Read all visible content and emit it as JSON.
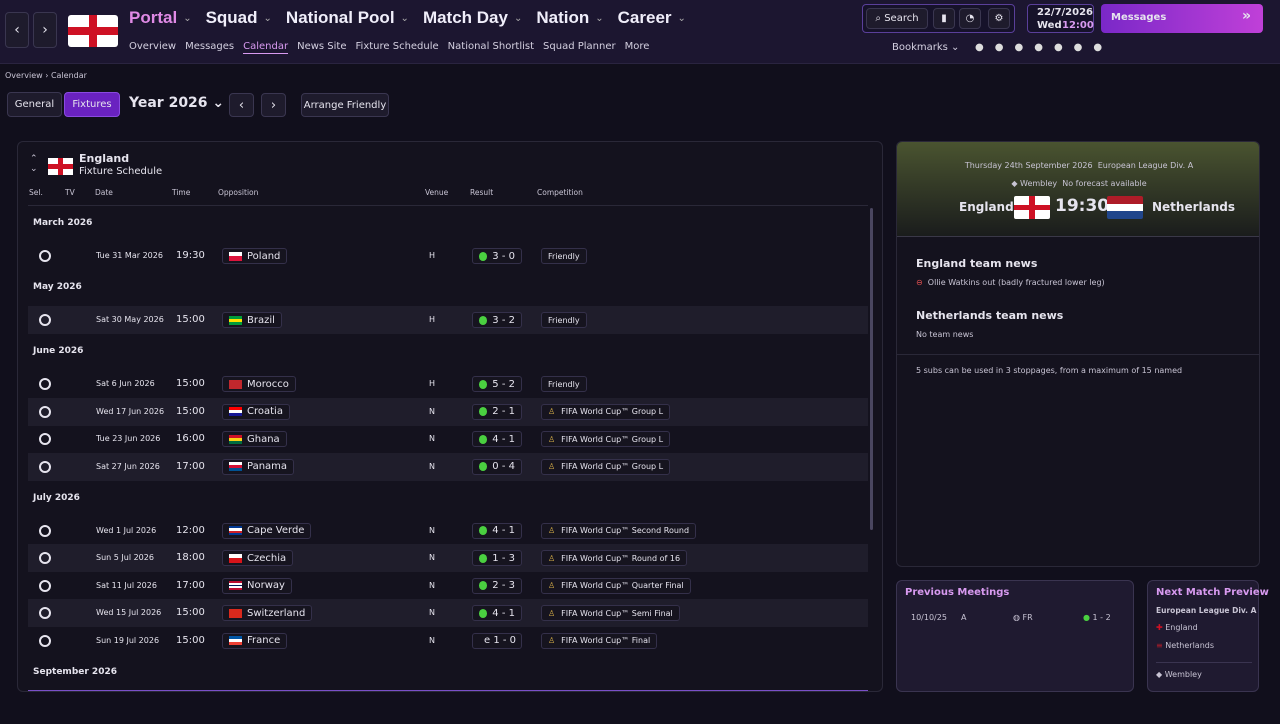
{
  "nav": {
    "main": [
      "Portal",
      "Squad",
      "National Pool",
      "Match Day",
      "Nation",
      "Career"
    ],
    "sub": [
      "Overview",
      "Messages",
      "Calendar",
      "News Site",
      "Fixture Schedule",
      "National Shortlist",
      "Squad Planner",
      "More"
    ],
    "search": "Search",
    "date": "22/7/2026",
    "weekday": "Wed",
    "time": "12:00",
    "messages": "Messages",
    "bookmarks": "Bookmarks"
  },
  "breadcrumb": [
    "Overview",
    "Calendar"
  ],
  "toolbar": {
    "tabs": [
      "General",
      "Fixtures"
    ],
    "year": "Year 2026",
    "arrange": "Arrange Friendly"
  },
  "schedule": {
    "team": "England",
    "subtitle": "Fixture Schedule",
    "columns": [
      "Sel.",
      "TV",
      "Date",
      "Time",
      "Opposition",
      "Venue",
      "Result",
      "Competition"
    ],
    "groups": [
      {
        "month": "March 2026",
        "fixtures": [
          {
            "date": "Tue 31 Mar 2026",
            "time": "19:30",
            "opposition": "Poland",
            "flag": [
              "#ffffff",
              "#dc143c"
            ],
            "venue": "H",
            "result": "3 - 0",
            "competition": "Friendly",
            "trophy": false
          }
        ]
      },
      {
        "month": "May 2026",
        "fixtures": [
          {
            "date": "Sat 30 May 2026",
            "time": "15:00",
            "opposition": "Brazil",
            "flag": [
              "#009c3b",
              "#ffdf00",
              "#009c3b"
            ],
            "venue": "H",
            "result": "3 - 2",
            "competition": "Friendly",
            "trophy": false
          }
        ]
      },
      {
        "month": "June 2026",
        "fixtures": [
          {
            "date": "Sat 6 Jun 2026",
            "time": "15:00",
            "opposition": "Morocco",
            "flag": [
              "#c1272d"
            ],
            "venue": "H",
            "result": "5 - 2",
            "competition": "Friendly",
            "trophy": false
          },
          {
            "date": "Wed 17 Jun 2026",
            "time": "15:00",
            "opposition": "Croatia",
            "flag": [
              "#ff0000",
              "#ffffff",
              "#171796"
            ],
            "venue": "N",
            "result": "2 - 1",
            "competition": "FIFA World Cup™ Group L",
            "trophy": true
          },
          {
            "date": "Tue 23 Jun 2026",
            "time": "16:00",
            "opposition": "Ghana",
            "flag": [
              "#ce1126",
              "#fcd116",
              "#006b3f"
            ],
            "venue": "N",
            "result": "4 - 1",
            "competition": "FIFA World Cup™ Group L",
            "trophy": true
          },
          {
            "date": "Sat 27 Jun 2026",
            "time": "17:00",
            "opposition": "Panama",
            "flag": [
              "#ffffff",
              "#d21034",
              "#005293"
            ],
            "venue": "N",
            "result": "0 - 4",
            "competition": "FIFA World Cup™ Group L",
            "trophy": true
          }
        ]
      },
      {
        "month": "July 2026",
        "fixtures": [
          {
            "date": "Wed 1 Jul 2026",
            "time": "12:00",
            "opposition": "Cape Verde",
            "flag": [
              "#003893",
              "#ffffff",
              "#cf2027",
              "#003893"
            ],
            "venue": "N",
            "result": "4 - 1",
            "competition": "FIFA World Cup™ Second Round",
            "trophy": true
          },
          {
            "date": "Sun 5 Jul 2026",
            "time": "18:00",
            "opposition": "Czechia",
            "flag": [
              "#ffffff",
              "#d7141a"
            ],
            "venue": "N",
            "result": "1 - 3",
            "competition": "FIFA World Cup™ Round of 16",
            "trophy": true
          },
          {
            "date": "Sat 11 Jul 2026",
            "time": "17:00",
            "opposition": "Norway",
            "flag": [
              "#ba0c2f",
              "#ffffff",
              "#00205b",
              "#ffffff",
              "#ba0c2f"
            ],
            "venue": "N",
            "result": "2 - 3",
            "competition": "FIFA World Cup™ Quarter Final",
            "trophy": true
          },
          {
            "date": "Wed 15 Jul 2026",
            "time": "15:00",
            "opposition": "Switzerland",
            "flag": [
              "#da291c"
            ],
            "venue": "N",
            "result": "4 - 1",
            "competition": "FIFA World Cup™ Semi Final",
            "trophy": true
          },
          {
            "date": "Sun 19 Jul 2026",
            "time": "15:00",
            "opposition": "France",
            "flag": [
              "#0055a4",
              "#ffffff",
              "#ef4135"
            ],
            "venue": "N",
            "result": "e 1 - 0",
            "competition": "FIFA World Cup™ Final",
            "trophy": true
          }
        ]
      },
      {
        "month": "September 2026",
        "fixtures": []
      }
    ]
  },
  "match": {
    "date": "Thursday 24th September 2026",
    "competition": "European League Div. A",
    "venue": "Wembley",
    "forecast": "No forecast available",
    "home": "England",
    "time": "19:30",
    "away": "Netherlands"
  },
  "team_news": {
    "home_title": "England team news",
    "home_items": [
      "Ollie Watkins out (badly fractured lower leg)"
    ],
    "away_title": "Netherlands team news",
    "away_items": [
      "No team news"
    ],
    "rules": "5 subs can be used in 3 stoppages, from a maximum of 15 named"
  },
  "previous_meetings": {
    "title": "Previous Meetings",
    "rows": [
      [
        "10/10/25",
        "A",
        "FR",
        "1 - 2"
      ]
    ]
  },
  "next_match": {
    "title": "Next Match Preview",
    "competition": "European League Div. A",
    "home": "England",
    "away": "Netherlands",
    "venue": "Wembley"
  }
}
